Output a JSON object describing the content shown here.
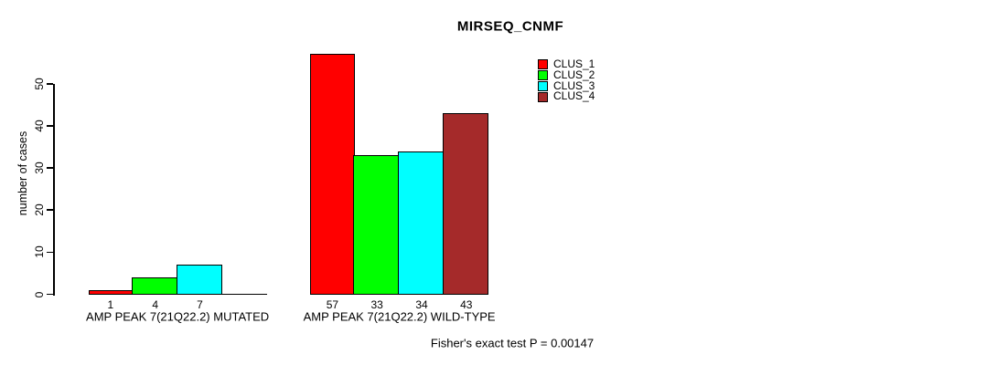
{
  "title": "MIRSEQ_CNMF",
  "footnote": "Fisher's exact test P = 0.00147",
  "chart_data": {
    "type": "bar",
    "title": "MIRSEQ_CNMF",
    "xlabel": "",
    "ylabel": "number of cases",
    "ylim": [
      0,
      57
    ],
    "yticks": [
      0,
      10,
      20,
      30,
      40,
      50
    ],
    "grid": false,
    "legend_position": "top-right",
    "categories": [
      "AMP PEAK 7(21Q22.2) MUTATED",
      "AMP PEAK 7(21Q22.2) WILD-TYPE"
    ],
    "series": [
      {
        "name": "CLUS_1",
        "color": "#ff0000",
        "values": [
          1,
          57
        ]
      },
      {
        "name": "CLUS_2",
        "color": "#00ff00",
        "values": [
          4,
          33
        ]
      },
      {
        "name": "CLUS_3",
        "color": "#00ffff",
        "values": [
          7,
          34
        ]
      },
      {
        "name": "CLUS_4",
        "color": "#a52a2a",
        "values": [
          0,
          43
        ]
      }
    ],
    "bar_value_labels": [
      [
        "1",
        "4",
        "7",
        ""
      ],
      [
        "57",
        "33",
        "34",
        "43"
      ]
    ],
    "annotation": "Fisher's exact test P = 0.00147",
    "colors": {
      "background": "#ffffff",
      "axis": "#000000",
      "text": "#000000",
      "bar_border": "#000000"
    }
  }
}
